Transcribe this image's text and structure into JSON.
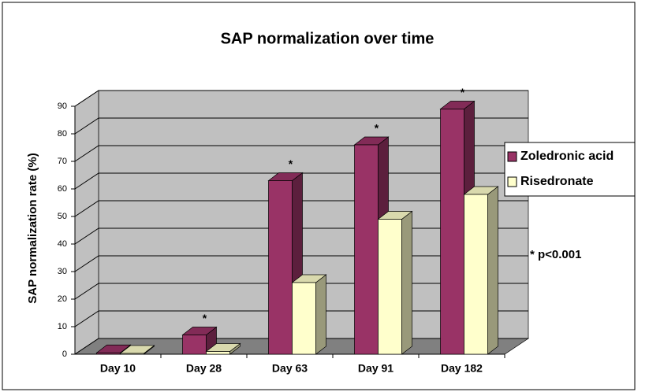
{
  "chart_data": {
    "type": "bar3d",
    "title": "SAP normalization over time",
    "y_label": "SAP normalization rate (%)",
    "categories": [
      "Day 10",
      "Day 28",
      "Day 63",
      "Day 91",
      "Day 182"
    ],
    "series": [
      {
        "name": "Zoledronic acid",
        "color": "#993366",
        "values": [
          0.5,
          7,
          63,
          76,
          89
        ]
      },
      {
        "name": "Risedronate",
        "color": "#ffffcc",
        "values": [
          0.3,
          1,
          26,
          49,
          58
        ]
      }
    ],
    "significance": [
      null,
      "*",
      "*",
      "*",
      "*"
    ],
    "footnote": "* p<0.001",
    "ylim": [
      0,
      90
    ],
    "yticks": [
      0,
      10,
      20,
      30,
      40,
      50,
      60,
      70,
      80,
      90
    ],
    "grid": true,
    "legend": "right",
    "wall_color": "#c0c0c0",
    "floor_color": "#808080"
  }
}
